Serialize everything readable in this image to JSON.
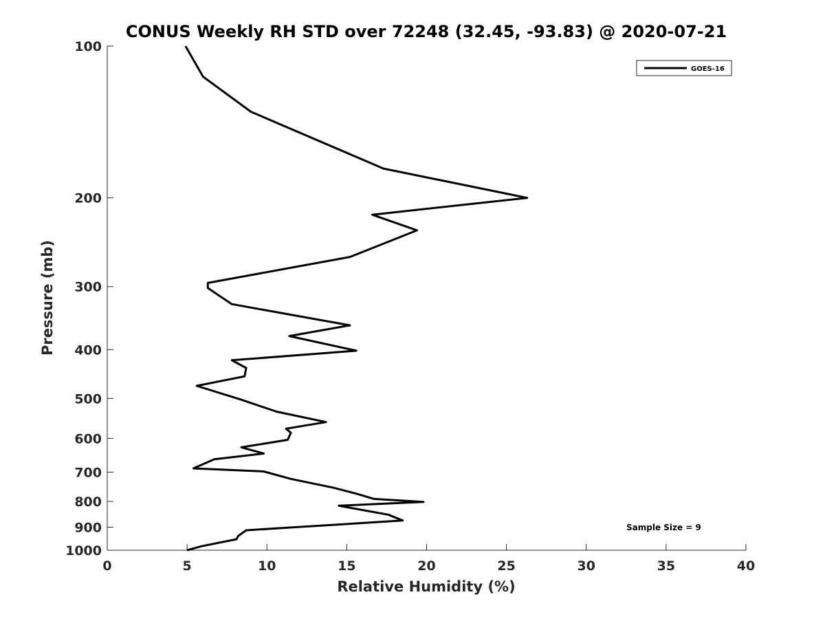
{
  "chart_data": {
    "type": "line",
    "title": "CONUS Weekly RH STD over 72248 (32.45, -93.83) @ 2020-07-21",
    "xlabel": "Relative Humidity (%)",
    "ylabel": "Pressure (mb)",
    "xlim": [
      0,
      40
    ],
    "ylim": [
      100,
      1000
    ],
    "y_scale": "log",
    "y_reversed": true,
    "x_ticks": [
      "0",
      "5",
      "10",
      "15",
      "20",
      "25",
      "30",
      "35",
      "40"
    ],
    "y_ticks": [
      "100",
      "200",
      "300",
      "400",
      "500",
      "600",
      "700",
      "800",
      "900",
      "1000"
    ],
    "grid": false,
    "legend_position": "top-right",
    "annotation": "Sample Size = 9",
    "line_color": "#000000",
    "series": [
      {
        "name": "GOES-16",
        "x": [
          4.9,
          6.0,
          9.0,
          17.3,
          26.3,
          16.6,
          19.4,
          15.2,
          6.3,
          6.3,
          7.8,
          15.2,
          11.4,
          15.6,
          7.8,
          8.7,
          8.6,
          5.6,
          8.4,
          10.6,
          13.7,
          11.2,
          11.5,
          11.3,
          8.4,
          9.8,
          6.7,
          5.4,
          9.8,
          11.5,
          14.2,
          15.7,
          16.7,
          19.8,
          14.5,
          17.6,
          18.5,
          11.1,
          8.7,
          8.2,
          8.1,
          5.9,
          5.0
        ],
        "y": [
          100,
          115,
          135,
          175,
          200,
          216,
          232,
          262,
          295,
          302,
          325,
          358,
          376,
          402,
          420,
          435,
          452,
          472,
          503,
          531,
          557,
          574,
          585,
          604,
          625,
          643,
          660,
          688,
          698,
          722,
          752,
          774,
          791,
          802,
          816,
          850,
          873,
          903,
          913,
          937,
          951,
          982,
          1000
        ]
      }
    ]
  }
}
